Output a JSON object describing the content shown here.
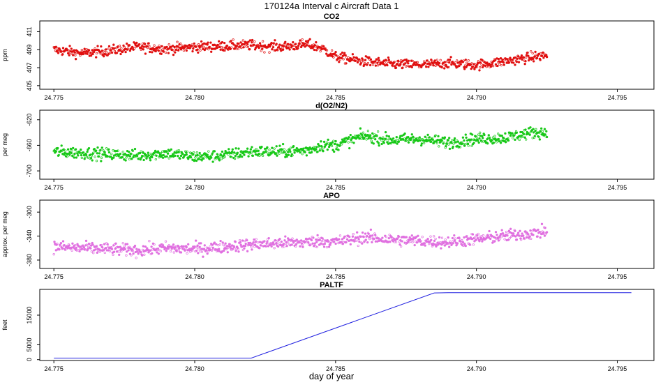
{
  "figure": {
    "title": "170124a   Interval c Aircraft Data 1",
    "xlabel": "day of year"
  },
  "colors": {
    "co2": "#e01010",
    "o2n2": "#18c818",
    "apo": "#e070e0",
    "paltf": "#2020e0",
    "frame": "#000000"
  },
  "chart_data": [
    {
      "id": "co2",
      "type": "scatter",
      "title": "CO2",
      "ylabel": "ppm",
      "xlim": [
        24.7745,
        24.7963
      ],
      "ylim": [
        404.6,
        412.2
      ],
      "xticks": [
        "24.775",
        "24.780",
        "24.785",
        "24.790",
        "24.795"
      ],
      "yticks": [
        "405",
        "407",
        "409",
        "411"
      ],
      "series": [
        {
          "x": [
            24.775,
            24.776,
            24.777,
            24.778,
            24.779,
            24.78,
            24.781,
            24.782,
            24.783,
            24.784,
            24.7845,
            24.785,
            24.786,
            24.787,
            24.788,
            24.789,
            24.79,
            24.791,
            24.792,
            24.7925
          ],
          "y": [
            409.0,
            408.6,
            408.9,
            409.3,
            409.1,
            409.3,
            409.4,
            409.5,
            409.3,
            409.6,
            409.2,
            408.2,
            407.7,
            407.4,
            407.3,
            407.5,
            407.3,
            407.7,
            408.2,
            408.4
          ]
        }
      ]
    },
    {
      "id": "o2n2",
      "type": "scatter",
      "title": "d(O2/N2)",
      "ylabel": "per meg",
      "xlim": [
        24.7745,
        24.7963
      ],
      "ylim": [
        -713,
        -605
      ],
      "xticks": [
        "24.775",
        "24.780",
        "24.785",
        "24.790",
        "24.795"
      ],
      "yticks": [
        "-700",
        "-660",
        "-620"
      ],
      "series": [
        {
          "x": [
            24.775,
            24.776,
            24.777,
            24.778,
            24.779,
            24.78,
            24.781,
            24.782,
            24.783,
            24.784,
            24.7845,
            24.785,
            24.786,
            24.787,
            24.788,
            24.789,
            24.79,
            24.791,
            24.792,
            24.7925
          ],
          "y": [
            -670,
            -672,
            -674,
            -676,
            -672,
            -678,
            -676,
            -670,
            -670,
            -668,
            -660,
            -660,
            -645,
            -652,
            -650,
            -656,
            -650,
            -648,
            -640,
            -640
          ]
        }
      ]
    },
    {
      "id": "apo",
      "type": "scatter",
      "title": "APO",
      "ylabel": "approx. per meg",
      "xlim": [
        24.7745,
        24.7963
      ],
      "ylim": [
        -394,
        -280
      ],
      "xticks": [
        "24.775",
        "24.780",
        "24.785",
        "24.790",
        "24.795"
      ],
      "yticks": [
        "-380",
        "-340",
        "-300"
      ],
      "series": [
        {
          "x": [
            24.775,
            24.776,
            24.777,
            24.778,
            24.779,
            24.78,
            24.781,
            24.782,
            24.783,
            24.784,
            24.7845,
            24.785,
            24.786,
            24.787,
            24.788,
            24.789,
            24.79,
            24.791,
            24.792,
            24.7925
          ],
          "y": [
            -358,
            -360,
            -362,
            -364,
            -360,
            -362,
            -358,
            -354,
            -352,
            -350,
            -348,
            -350,
            -342,
            -346,
            -348,
            -350,
            -345,
            -340,
            -335,
            -332
          ]
        }
      ]
    },
    {
      "id": "paltf",
      "type": "line",
      "title": "PALTF",
      "ylabel": "feet",
      "xlim": [
        24.7745,
        24.7963
      ],
      "ylim": [
        -300,
        23700
      ],
      "xticks": [
        "24.775",
        "24.780",
        "24.785",
        "24.790",
        "24.795"
      ],
      "yticks": [
        "0",
        "5000",
        "15000"
      ],
      "series": [
        {
          "x": [
            24.775,
            24.782,
            24.7885,
            24.789,
            24.7955
          ],
          "y": [
            500,
            500,
            22500,
            22600,
            22600
          ]
        }
      ]
    }
  ]
}
